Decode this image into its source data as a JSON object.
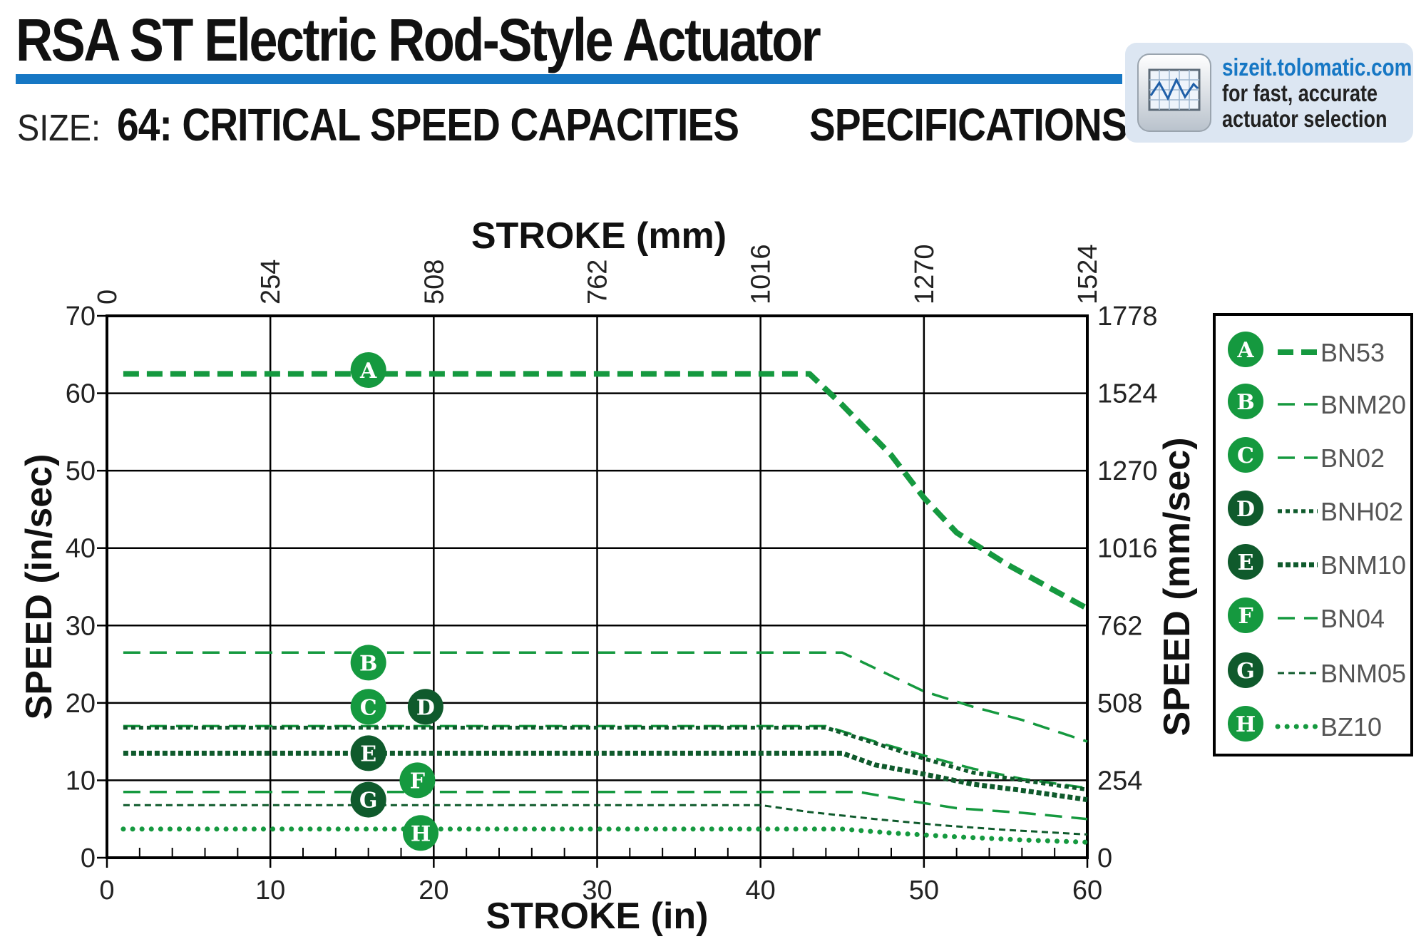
{
  "header": {
    "title": "RSA ST Electric Rod-Style Actuator",
    "size_label": "SIZE:",
    "size_value": "64: CRITICAL SPEED CAPACITIES",
    "section": "SPECIFICATIONS"
  },
  "promo": {
    "url": "sizeit.tolomatic.com",
    "line1": "for fast, accurate",
    "line2": "actuator selection",
    "icon": "chart-screen-icon"
  },
  "colors": {
    "bright_green": "#15993f",
    "dark_green": "#0f5a2c",
    "accent_blue": "#1677c4"
  },
  "chart_data": {
    "type": "line",
    "xlabel": "STROKE (in)",
    "ylabel": "SPEED (in/sec)",
    "x2label": "STROKE (mm)",
    "y2label": "SPEED (mm/sec)",
    "xlim": [
      0,
      60
    ],
    "ylim": [
      0,
      70
    ],
    "x_ticks": [
      0,
      10,
      20,
      30,
      40,
      50,
      60
    ],
    "y_ticks": [
      0,
      10,
      20,
      30,
      40,
      50,
      60,
      70
    ],
    "x2_ticks": [
      "0",
      "254",
      "508",
      "762",
      "1016",
      "1270",
      "1524"
    ],
    "y2_ticks": [
      "0",
      "254",
      "508",
      "762",
      "1016",
      "1270",
      "1524",
      "1778"
    ],
    "grid": true,
    "legend_position": "right",
    "series": [
      {
        "name": "BN53",
        "badge": "A",
        "tone": "bright",
        "style": "dash-thick",
        "label_at": [
          16,
          63
        ],
        "points": [
          [
            1,
            62.5
          ],
          [
            43,
            62.5
          ],
          [
            45,
            58.5
          ],
          [
            48,
            52
          ],
          [
            50,
            46.5
          ],
          [
            52,
            42
          ],
          [
            55,
            38
          ],
          [
            58,
            34.5
          ],
          [
            60,
            32.2
          ]
        ]
      },
      {
        "name": "BNM20",
        "badge": "B",
        "tone": "bright",
        "style": "dash-thin",
        "label_at": [
          16,
          25.2
        ],
        "points": [
          [
            1,
            26.5
          ],
          [
            45,
            26.5
          ],
          [
            48,
            23.5
          ],
          [
            50,
            21.5
          ],
          [
            53,
            19.5
          ],
          [
            56,
            17.8
          ],
          [
            60,
            15
          ]
        ]
      },
      {
        "name": "BN02",
        "badge": "C",
        "tone": "bright",
        "style": "dash-thin",
        "label_at": [
          16,
          19.5
        ],
        "points": [
          [
            1,
            17
          ],
          [
            44,
            17
          ],
          [
            47,
            15
          ],
          [
            50,
            13.2
          ],
          [
            53,
            11.5
          ],
          [
            56,
            10.2
          ],
          [
            60,
            9
          ]
        ]
      },
      {
        "name": "BNH02",
        "badge": "D",
        "tone": "dark",
        "style": "dot-medium",
        "label_at": [
          19.5,
          19.5
        ],
        "points": [
          [
            1,
            16.8
          ],
          [
            44,
            16.8
          ],
          [
            47,
            14.8
          ],
          [
            50,
            12.8
          ],
          [
            53,
            11
          ],
          [
            56,
            10
          ],
          [
            60,
            8.8
          ]
        ]
      },
      {
        "name": "BNM10",
        "badge": "E",
        "tone": "dark",
        "style": "dot-thick",
        "label_at": [
          16,
          13.5
        ],
        "points": [
          [
            1,
            13.5
          ],
          [
            45,
            13.5
          ],
          [
            47,
            12
          ],
          [
            50,
            10.8
          ],
          [
            53,
            9.5
          ],
          [
            56,
            8.7
          ],
          [
            60,
            7.5
          ]
        ]
      },
      {
        "name": "BN04",
        "badge": "F",
        "tone": "bright",
        "style": "dash-thin",
        "label_at": [
          19,
          10
        ],
        "points": [
          [
            1,
            8.5
          ],
          [
            46,
            8.5
          ],
          [
            49,
            7.4
          ],
          [
            52,
            6.4
          ],
          [
            56,
            5.8
          ],
          [
            60,
            5
          ]
        ]
      },
      {
        "name": "BNM05",
        "badge": "G",
        "tone": "dark",
        "style": "dash-fine",
        "label_at": [
          16,
          7.5
        ],
        "points": [
          [
            1,
            6.8
          ],
          [
            40,
            6.8
          ],
          [
            43,
            5.9
          ],
          [
            47,
            5
          ],
          [
            51,
            4.2
          ],
          [
            55,
            3.6
          ],
          [
            60,
            3
          ]
        ]
      },
      {
        "name": "BZ10",
        "badge": "H",
        "tone": "bright",
        "style": "dot-round",
        "label_at": [
          19.2,
          3.2
        ],
        "points": [
          [
            1,
            3.7
          ],
          [
            45,
            3.7
          ],
          [
            48,
            3.2
          ],
          [
            52,
            2.7
          ],
          [
            56,
            2.3
          ],
          [
            60,
            2
          ]
        ]
      }
    ]
  }
}
